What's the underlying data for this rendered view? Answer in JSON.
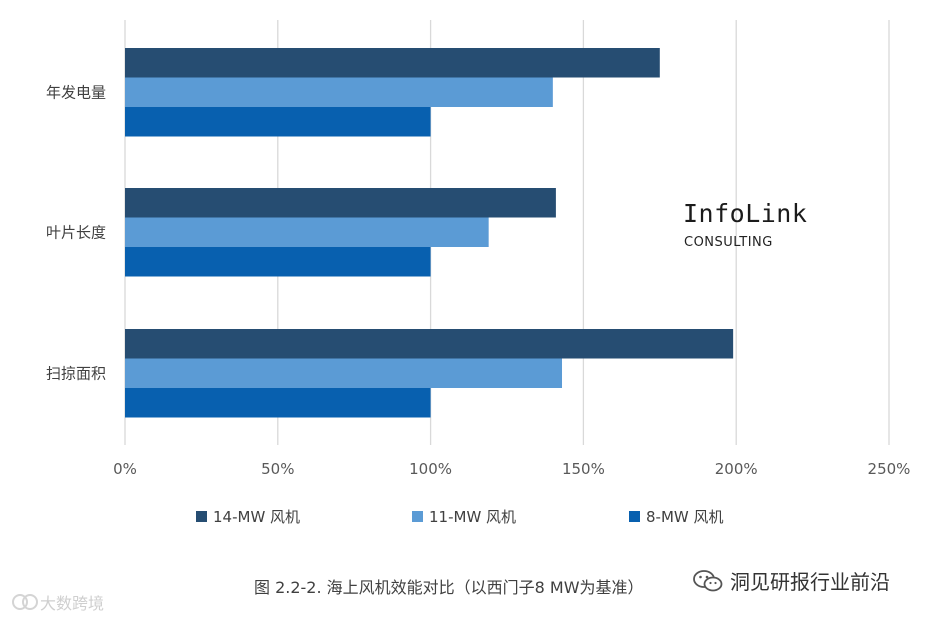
{
  "chart_data": {
    "type": "bar",
    "orientation": "horizontal",
    "categories": [
      "年发电量",
      "叶片长度",
      "扫掠面积"
    ],
    "series": [
      {
        "name": "14-MW 风机",
        "values": [
          175,
          141,
          199
        ],
        "color": "#264D72"
      },
      {
        "name": "11-MW 风机",
        "values": [
          140,
          119,
          143
        ],
        "color": "#5B9BD5"
      },
      {
        "name": "8-MW 风机",
        "values": [
          100,
          100,
          100
        ],
        "color": "#0860AF"
      }
    ],
    "x_ticks": [
      "0%",
      "50%",
      "100%",
      "150%",
      "200%",
      "250%"
    ],
    "xlim": [
      0,
      250
    ],
    "grid": true,
    "legend_position": "bottom"
  },
  "brand": {
    "name": "InfoLink",
    "sub": "CONSULTING"
  },
  "caption": "图 2.2-2. 海上风机效能对比（以西门子8 MW为基准）",
  "wechat_label": "洞见研报行业前沿",
  "watermark": "大数跨境"
}
